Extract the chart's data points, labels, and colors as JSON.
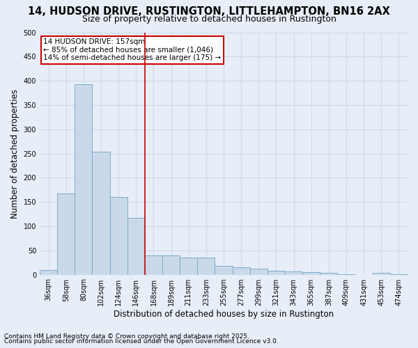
{
  "title_line1": "14, HUDSON DRIVE, RUSTINGTON, LITTLEHAMPTON, BN16 2AX",
  "title_line2": "Size of property relative to detached houses in Rustington",
  "xlabel": "Distribution of detached houses by size in Rustington",
  "ylabel": "Number of detached properties",
  "categories": [
    "36sqm",
    "58sqm",
    "80sqm",
    "102sqm",
    "124sqm",
    "146sqm",
    "168sqm",
    "189sqm",
    "211sqm",
    "233sqm",
    "255sqm",
    "277sqm",
    "299sqm",
    "321sqm",
    "343sqm",
    "365sqm",
    "387sqm",
    "409sqm",
    "431sqm",
    "453sqm",
    "474sqm"
  ],
  "values": [
    10,
    168,
    393,
    253,
    160,
    117,
    40,
    40,
    35,
    35,
    18,
    15,
    12,
    8,
    7,
    5,
    3,
    1,
    0,
    3,
    1
  ],
  "bar_color": "#c9d9ea",
  "bar_edge_color": "#7bacc9",
  "grid_color": "#d0d8e8",
  "background_color": "#e8eef8",
  "vline_x": 5.5,
  "vline_color": "#cc0000",
  "annotation_box_text": "14 HUDSON DRIVE: 157sqm\n← 85% of detached houses are smaller (1,046)\n14% of semi-detached houses are larger (175) →",
  "annotation_box_color": "#cc0000",
  "annotation_box_bg": "#ffffff",
  "footnote_line1": "Contains HM Land Registry data © Crown copyright and database right 2025.",
  "footnote_line2": "Contains public sector information licensed under the Open Government Licence v3.0.",
  "ylim": [
    0,
    500
  ],
  "yticks": [
    0,
    50,
    100,
    150,
    200,
    250,
    300,
    350,
    400,
    450,
    500
  ],
  "title_fontsize": 10.5,
  "subtitle_fontsize": 9,
  "tick_fontsize": 7,
  "axis_label_fontsize": 8.5,
  "footnote_fontsize": 6.5,
  "annot_fontsize": 7.5
}
